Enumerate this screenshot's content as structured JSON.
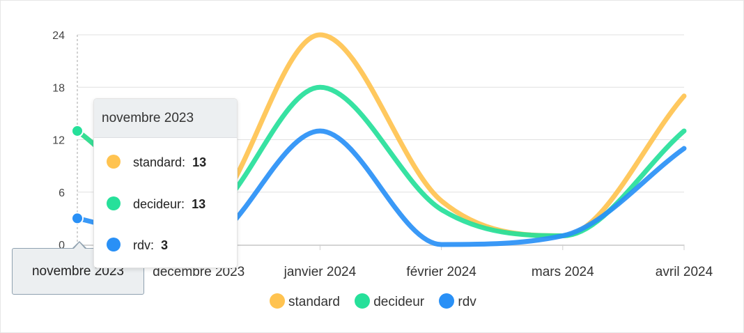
{
  "chart_data": {
    "type": "line",
    "categories": [
      "novembre 2023",
      "décembre 2023",
      "janvier 2024",
      "février 2024",
      "mars 2024",
      "avril 2024"
    ],
    "series": [
      {
        "name": "standard",
        "color": "#ffc350",
        "values": [
          13,
          3,
          24,
          5,
          1,
          17
        ]
      },
      {
        "name": "decideur",
        "color": "#26e09a",
        "values": [
          13,
          3,
          18,
          4,
          1,
          13
        ]
      },
      {
        "name": "rdv",
        "color": "#2990f6",
        "values": [
          3,
          0,
          13,
          0,
          1,
          11
        ]
      }
    ],
    "ylim": [
      0,
      24
    ],
    "yticks": [
      "0",
      "6",
      "12",
      "18",
      "24"
    ],
    "grid": true,
    "legend": "bottom"
  },
  "tooltip": {
    "title": "novembre 2023",
    "rows": [
      {
        "label": "standard:",
        "value": "13"
      },
      {
        "label": "decideur:",
        "value": "13"
      },
      {
        "label": "rdv:",
        "value": "3"
      }
    ]
  },
  "xtooltip": {
    "label": "novembre 2023"
  }
}
